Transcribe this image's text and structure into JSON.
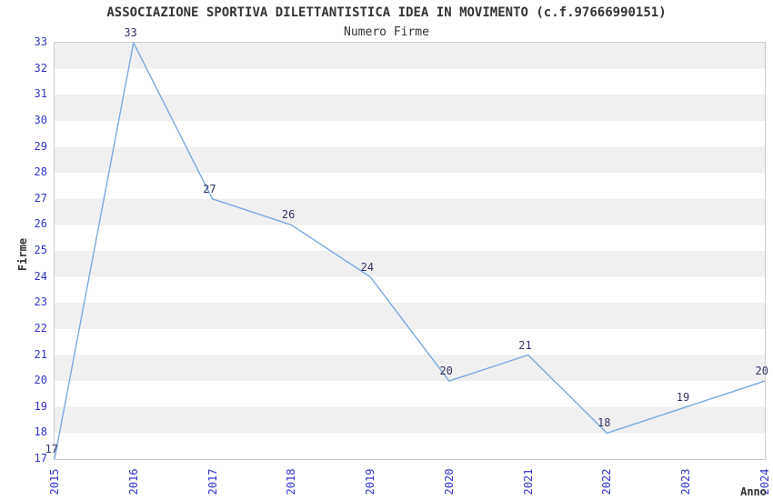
{
  "header": {
    "title": "ASSOCIAZIONE SPORTIVA DILETTANTISTICA IDEA IN MOVIMENTO (c.f.97666990151)",
    "subtitle": "Numero Firme"
  },
  "chart_data": {
    "type": "line",
    "title": "ASSOCIAZIONE SPORTIVA DILETTANTISTICA IDEA IN MOVIMENTO (c.f.97666990151)",
    "subtitle": "Numero Firme",
    "xlabel": "Anno",
    "ylabel": "Firme",
    "x": [
      2015,
      2016,
      2017,
      2018,
      2019,
      2020,
      2021,
      2022,
      2023,
      2024
    ],
    "series": [
      {
        "name": "Numero Firme",
        "values": [
          17,
          33,
          27,
          26,
          24,
          20,
          21,
          18,
          19,
          20
        ]
      }
    ],
    "ylim": [
      17,
      33
    ],
    "ytick_step": 1,
    "xtick_rotation_deg": -90,
    "grid": "alternating horizontal bands, one unit tall, gray band at top (33-32)",
    "legend_position": "none",
    "point_labels_visible": true,
    "colors": {
      "line": "#7aaade",
      "tick_label": "#3333cc",
      "point_label": "#333366",
      "title_text": "#333333",
      "band_gray": "#f0f0f0",
      "band_white": "#ffffff",
      "plot_border": "#cccccc",
      "background": "#ffffff"
    }
  }
}
